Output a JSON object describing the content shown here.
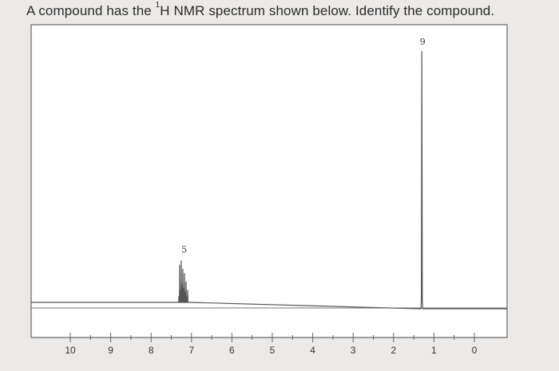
{
  "question": {
    "prefix": "A compound has the ",
    "superscript": "1",
    "suffix": "H NMR spectrum shown below. Identify the compound."
  },
  "chart_data": {
    "type": "line",
    "title": "",
    "xlabel": "",
    "ylabel": "",
    "x_axis_reversed": true,
    "xlim": [
      0,
      10
    ],
    "ylim": [
      0,
      9
    ],
    "grid": false,
    "tick_labels": [
      "10",
      "9",
      "8",
      "7",
      "6",
      "5",
      "4",
      "3",
      "2",
      "1",
      "0"
    ],
    "peaks": [
      {
        "shift_ppm": 7.2,
        "integration": 5,
        "label": "5",
        "shape": "multiplet"
      },
      {
        "shift_ppm": 1.3,
        "integration": 9,
        "label": "9",
        "shape": "singlet"
      }
    ],
    "line_color": "#555555",
    "frame_color": "#666666"
  }
}
